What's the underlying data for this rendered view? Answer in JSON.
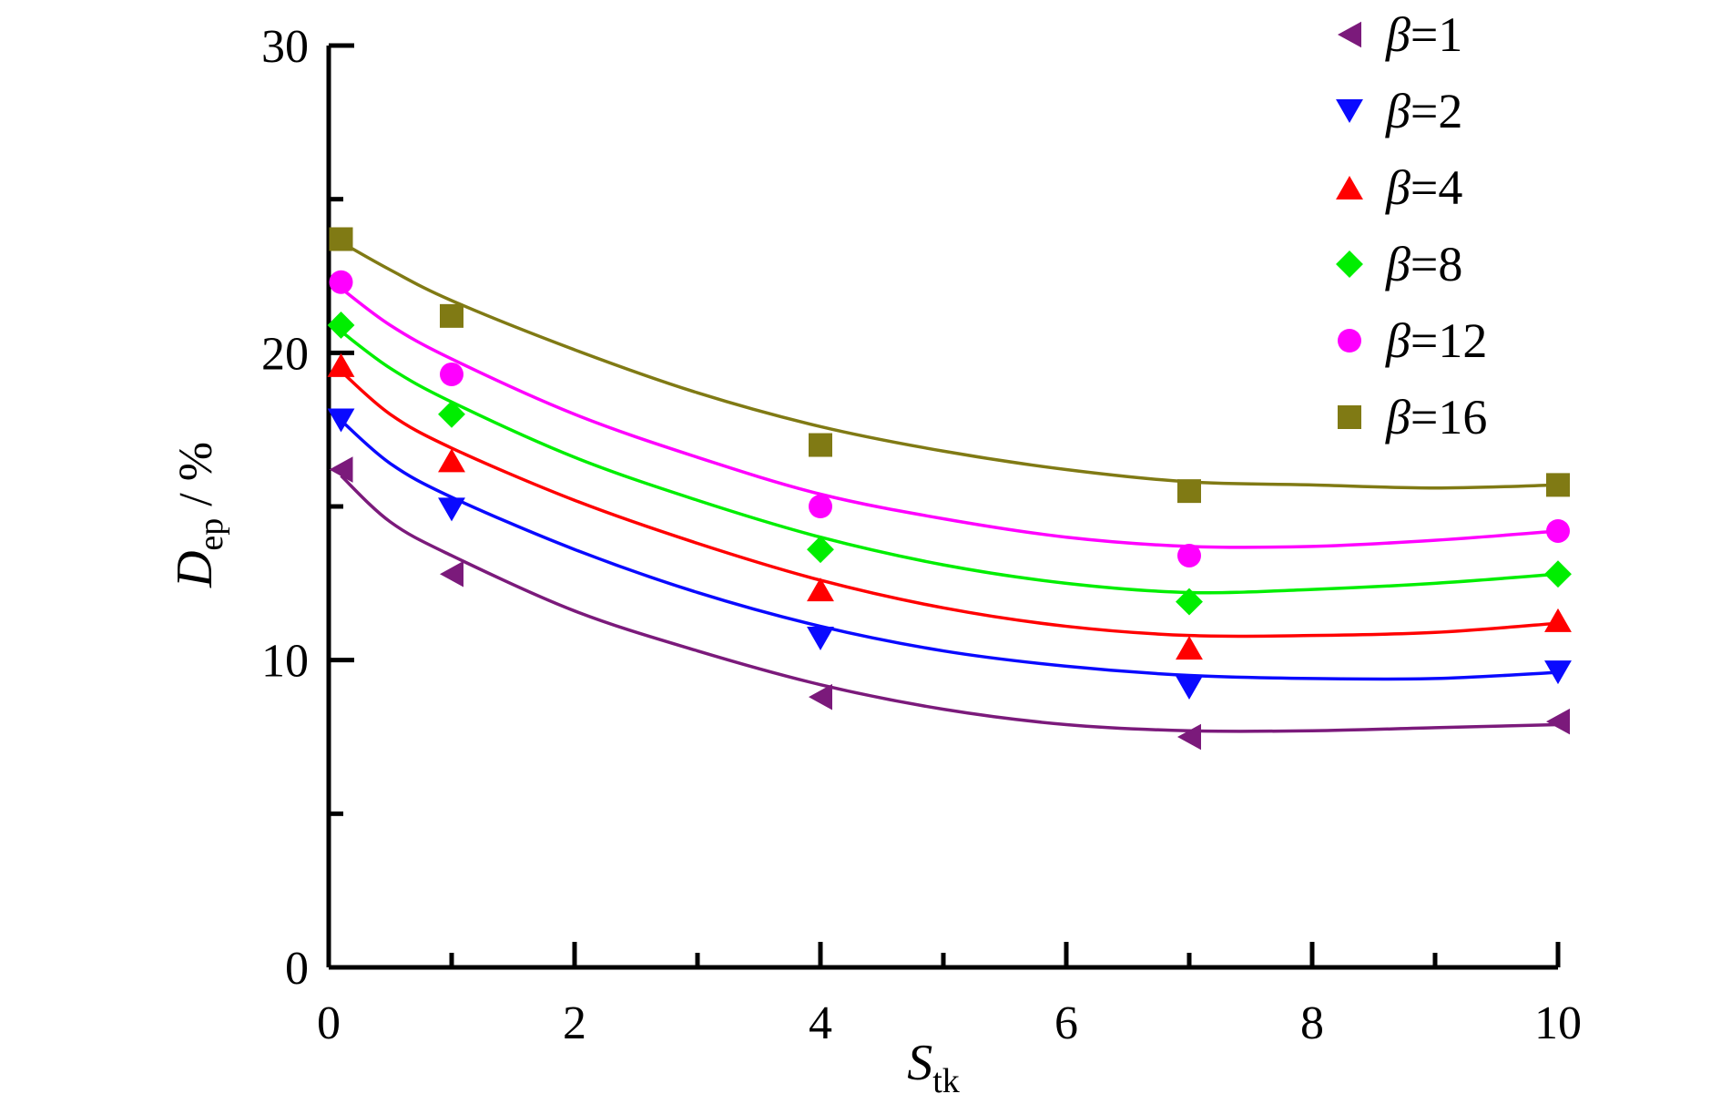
{
  "chart_data": {
    "type": "scatter",
    "xlabel": {
      "main": "S",
      "sub": "tk"
    },
    "ylabel": {
      "main": "D",
      "sub": "ep",
      "suffix": " / %"
    },
    "xlim": [
      0,
      10
    ],
    "ylim": [
      0,
      30
    ],
    "x_ticks": [
      0,
      2,
      4,
      6,
      8,
      10
    ],
    "x_tick_labels": [
      "0",
      "2",
      "4",
      "6",
      "8",
      "10"
    ],
    "y_ticks": [
      0,
      10,
      20,
      30
    ],
    "y_tick_labels": [
      "0",
      "10",
      "20",
      "30"
    ],
    "grid": false,
    "legend_position": "top-right",
    "legend_symbol": "β",
    "x": [
      0.1,
      1,
      4,
      7,
      10
    ],
    "series": [
      {
        "name": "β = 1",
        "label_value": "1",
        "marker": "triangle-left",
        "color": "#7b1a7b",
        "values": [
          16.2,
          12.8,
          8.8,
          7.5,
          8.0
        ],
        "fit": [
          [
            0.1,
            16.0
          ],
          [
            0.5,
            14.5
          ],
          [
            1,
            13.4
          ],
          [
            2,
            11.6
          ],
          [
            3,
            10.3
          ],
          [
            4,
            9.2
          ],
          [
            5,
            8.4
          ],
          [
            6,
            7.9
          ],
          [
            7,
            7.7
          ],
          [
            8,
            7.7
          ],
          [
            9,
            7.8
          ],
          [
            10,
            7.9
          ]
        ]
      },
      {
        "name": "β = 2",
        "label_value": "2",
        "marker": "triangle-down",
        "color": "#0a0aff",
        "values": [
          17.8,
          14.9,
          10.7,
          9.1,
          9.6
        ],
        "fit": [
          [
            0.1,
            17.8
          ],
          [
            0.5,
            16.4
          ],
          [
            1,
            15.3
          ],
          [
            2,
            13.6
          ],
          [
            3,
            12.2
          ],
          [
            4,
            11.1
          ],
          [
            5,
            10.3
          ],
          [
            6,
            9.8
          ],
          [
            7,
            9.5
          ],
          [
            8,
            9.4
          ],
          [
            9,
            9.4
          ],
          [
            10,
            9.6
          ]
        ]
      },
      {
        "name": "β = 4",
        "label_value": "4",
        "marker": "triangle-up",
        "color": "#ff0000",
        "values": [
          19.6,
          16.5,
          12.3,
          10.4,
          11.3
        ],
        "fit": [
          [
            0.1,
            19.4
          ],
          [
            0.5,
            18.0
          ],
          [
            1,
            16.9
          ],
          [
            2,
            15.2
          ],
          [
            3,
            13.8
          ],
          [
            4,
            12.6
          ],
          [
            5,
            11.7
          ],
          [
            6,
            11.1
          ],
          [
            7,
            10.8
          ],
          [
            8,
            10.8
          ],
          [
            9,
            10.9
          ],
          [
            10,
            11.2
          ]
        ]
      },
      {
        "name": "β = 8",
        "label_value": "8",
        "marker": "diamond",
        "color": "#00ee00",
        "values": [
          20.9,
          18.0,
          13.6,
          11.9,
          12.8
        ],
        "fit": [
          [
            0.1,
            20.7
          ],
          [
            0.5,
            19.5
          ],
          [
            1,
            18.4
          ],
          [
            2,
            16.6
          ],
          [
            3,
            15.2
          ],
          [
            4,
            14.0
          ],
          [
            5,
            13.1
          ],
          [
            6,
            12.5
          ],
          [
            7,
            12.2
          ],
          [
            8,
            12.3
          ],
          [
            9,
            12.5
          ],
          [
            10,
            12.8
          ]
        ]
      },
      {
        "name": "β = 12",
        "label_value": "12",
        "marker": "circle",
        "color": "#ff00ff",
        "values": [
          22.3,
          19.3,
          15.0,
          13.4,
          14.2
        ],
        "fit": [
          [
            0.1,
            22.1
          ],
          [
            0.5,
            20.9
          ],
          [
            1,
            19.8
          ],
          [
            2,
            18.0
          ],
          [
            3,
            16.6
          ],
          [
            4,
            15.4
          ],
          [
            5,
            14.6
          ],
          [
            6,
            14.0
          ],
          [
            7,
            13.7
          ],
          [
            8,
            13.7
          ],
          [
            9,
            13.9
          ],
          [
            10,
            14.2
          ]
        ]
      },
      {
        "name": "β = 16",
        "label_value": "16",
        "marker": "square",
        "color": "#807a14",
        "values": [
          23.7,
          21.2,
          17.0,
          15.5,
          15.7
        ],
        "fit": [
          [
            0.1,
            23.6
          ],
          [
            0.5,
            22.7
          ],
          [
            1,
            21.7
          ],
          [
            2,
            20.1
          ],
          [
            3,
            18.7
          ],
          [
            4,
            17.6
          ],
          [
            5,
            16.8
          ],
          [
            6,
            16.2
          ],
          [
            7,
            15.8
          ],
          [
            8,
            15.7
          ],
          [
            9,
            15.6
          ],
          [
            10,
            15.7
          ]
        ]
      }
    ]
  }
}
